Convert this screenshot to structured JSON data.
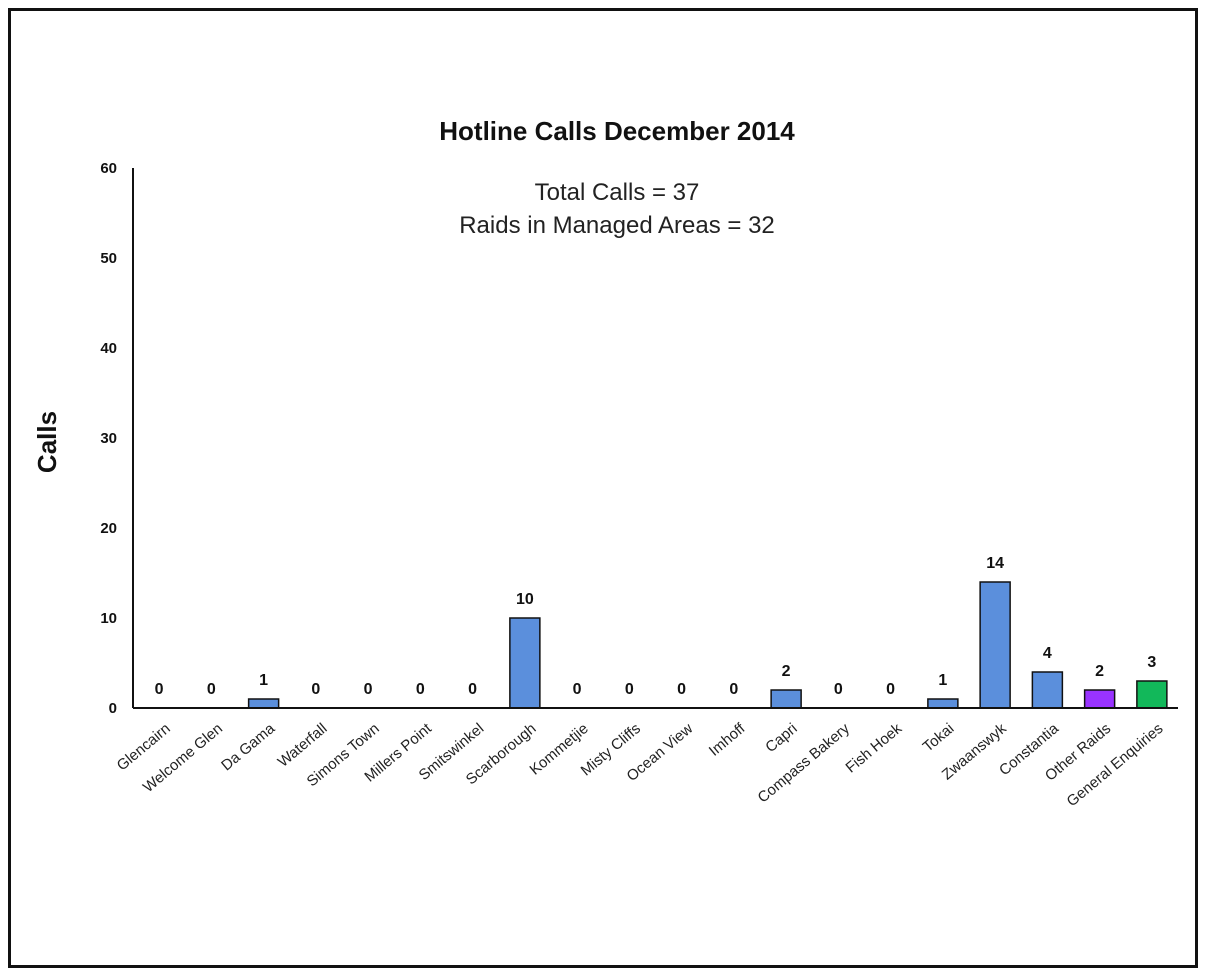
{
  "chart_data": {
    "type": "bar",
    "title": "Hotline Calls December 2014",
    "annotations": [
      "Total Calls = 37",
      "Raids in Managed Areas = 32"
    ],
    "xlabel": "",
    "ylabel": "Calls",
    "ylim": [
      0,
      60
    ],
    "yticks": [
      "0",
      "10",
      "20",
      "30",
      "40",
      "50",
      "60"
    ],
    "grid": false,
    "legend": "none",
    "categories": [
      "Glencairn",
      "Welcome Glen",
      "Da Gama",
      "Waterfall",
      "Simons Town",
      "Millers Point",
      "Smitswinkel",
      "Scarborough",
      "Kommetjie",
      "Misty Cliffs",
      "Ocean View",
      "Imhoff",
      "Capri",
      "Compass Bakery",
      "Fish Hoek",
      "Tokai",
      "Zwaanswyk",
      "Constantia",
      "Other Raids",
      "General Enquiries"
    ],
    "values": [
      0,
      0,
      1,
      0,
      0,
      0,
      0,
      10,
      0,
      0,
      0,
      0,
      2,
      0,
      0,
      1,
      14,
      4,
      2,
      3
    ],
    "data_labels": [
      "0",
      "0",
      "1",
      "0",
      "0",
      "0",
      "0",
      "10",
      "0",
      "0",
      "0",
      "0",
      "2",
      "0",
      "0",
      "1",
      "14",
      "4",
      "2",
      "3"
    ],
    "bar_colors": [
      "#5b8fdc",
      "#5b8fdc",
      "#5b8fdc",
      "#5b8fdc",
      "#5b8fdc",
      "#5b8fdc",
      "#5b8fdc",
      "#5b8fdc",
      "#5b8fdc",
      "#5b8fdc",
      "#5b8fdc",
      "#5b8fdc",
      "#5b8fdc",
      "#5b8fdc",
      "#5b8fdc",
      "#5b8fdc",
      "#5b8fdc",
      "#5b8fdc",
      "#9933ff",
      "#12b85a"
    ]
  }
}
